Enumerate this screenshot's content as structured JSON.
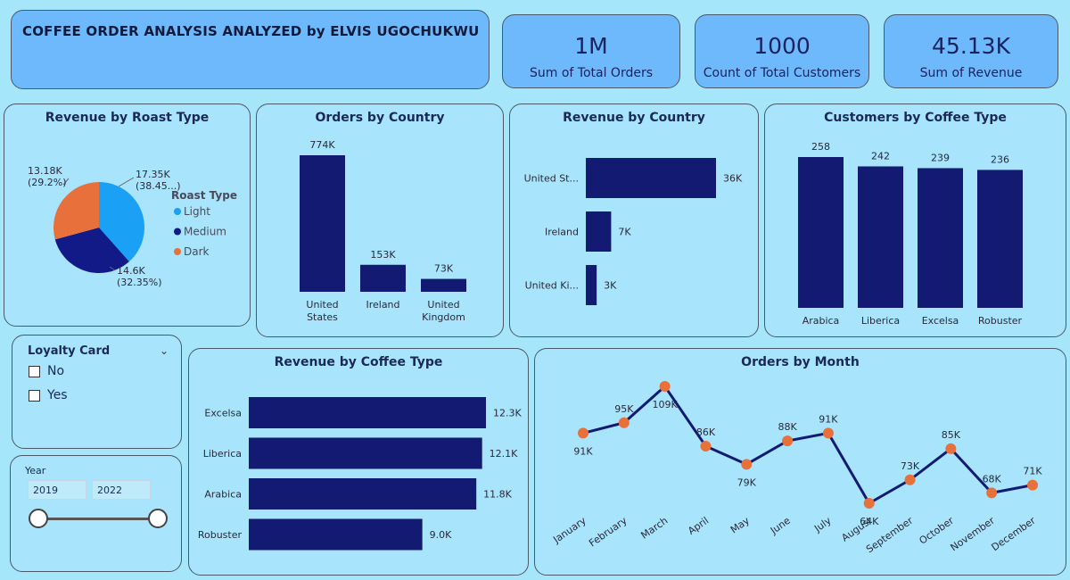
{
  "header": {
    "title": "COFFEE ORDER ANALYSIS ANALYZED by ELVIS UGOCHUKWU"
  },
  "kpis": [
    {
      "value": "1M",
      "label": "Sum of Total Orders"
    },
    {
      "value": "1000",
      "label": "Count of Total Customers"
    },
    {
      "value": "45.13K",
      "label": "Sum of Revenue"
    }
  ],
  "colors": {
    "navy": "#121a72",
    "orange": "#e8703a",
    "light": "#1aa0f5",
    "medium": "#121a88",
    "dark": "#e8703a"
  },
  "chart_data": [
    {
      "id": "roast",
      "type": "pie",
      "title": "Revenue by Roast Type",
      "legend_title": "Roast Type",
      "legend_position": "right",
      "slices": [
        {
          "name": "Light",
          "value": 17.35,
          "label": "17.35K",
          "pct": "(38.45...)",
          "color": "#1aa0f5"
        },
        {
          "name": "Medium",
          "value": 14.6,
          "label": "14.6K",
          "pct": "(32.35%)",
          "color": "#121a88"
        },
        {
          "name": "Dark",
          "value": 13.18,
          "label": "13.18K",
          "pct": "(29.2%)",
          "color": "#e8703a"
        }
      ]
    },
    {
      "id": "country_orders",
      "type": "bar",
      "title": "Orders by Country",
      "categories": [
        "United States",
        "Ireland",
        "United Kingdom"
      ],
      "category_lines": [
        [
          "United",
          "States"
        ],
        [
          "Ireland"
        ],
        [
          "United",
          "Kingdom"
        ]
      ],
      "values": [
        774,
        153,
        73
      ],
      "labels": [
        "774K",
        "153K",
        "73K"
      ],
      "ylim": [
        0,
        774
      ]
    },
    {
      "id": "country_revenue",
      "type": "bar",
      "orientation": "horizontal",
      "title": "Revenue by Country",
      "categories": [
        "United St...",
        "Ireland",
        "United Ki..."
      ],
      "values": [
        36,
        7,
        3
      ],
      "labels": [
        "36K",
        "7K",
        "3K"
      ],
      "xlim": [
        0,
        36
      ]
    },
    {
      "id": "customers_type",
      "type": "bar",
      "title": "Customers by Coffee Type",
      "categories": [
        "Arabica",
        "Liberica",
        "Excelsa",
        "Robuster"
      ],
      "values": [
        258,
        242,
        239,
        236
      ],
      "labels": [
        "258",
        "242",
        "239",
        "236"
      ],
      "ylim": [
        0,
        258
      ]
    },
    {
      "id": "revenue_type",
      "type": "bar",
      "orientation": "horizontal",
      "title": "Revenue by Coffee Type",
      "categories": [
        "Excelsa",
        "Liberica",
        "Arabica",
        "Robuster"
      ],
      "values": [
        12.3,
        12.1,
        11.8,
        9.0
      ],
      "labels": [
        "12.3K",
        "12.1K",
        "11.8K",
        "9.0K"
      ],
      "xlim": [
        0,
        12.3
      ]
    },
    {
      "id": "orders_month",
      "type": "line",
      "title": "Orders by Month",
      "x": [
        "January",
        "February",
        "March",
        "April",
        "May",
        "June",
        "July",
        "August",
        "September",
        "October",
        "November",
        "December"
      ],
      "values": [
        91,
        95,
        109,
        86,
        79,
        88,
        91,
        64,
        73,
        85,
        68,
        71
      ],
      "labels": [
        "91K",
        "95K",
        "109K",
        "86K",
        "79K",
        "88K",
        "91K",
        "64K",
        "73K",
        "85K",
        "68K",
        "71K"
      ],
      "ylim": [
        64,
        109
      ]
    }
  ],
  "loyalty_slicer": {
    "title": "Loyalty Card",
    "options": [
      "No",
      "Yes"
    ]
  },
  "year_slicer": {
    "label": "Year",
    "from": "2019",
    "to": "2022"
  }
}
